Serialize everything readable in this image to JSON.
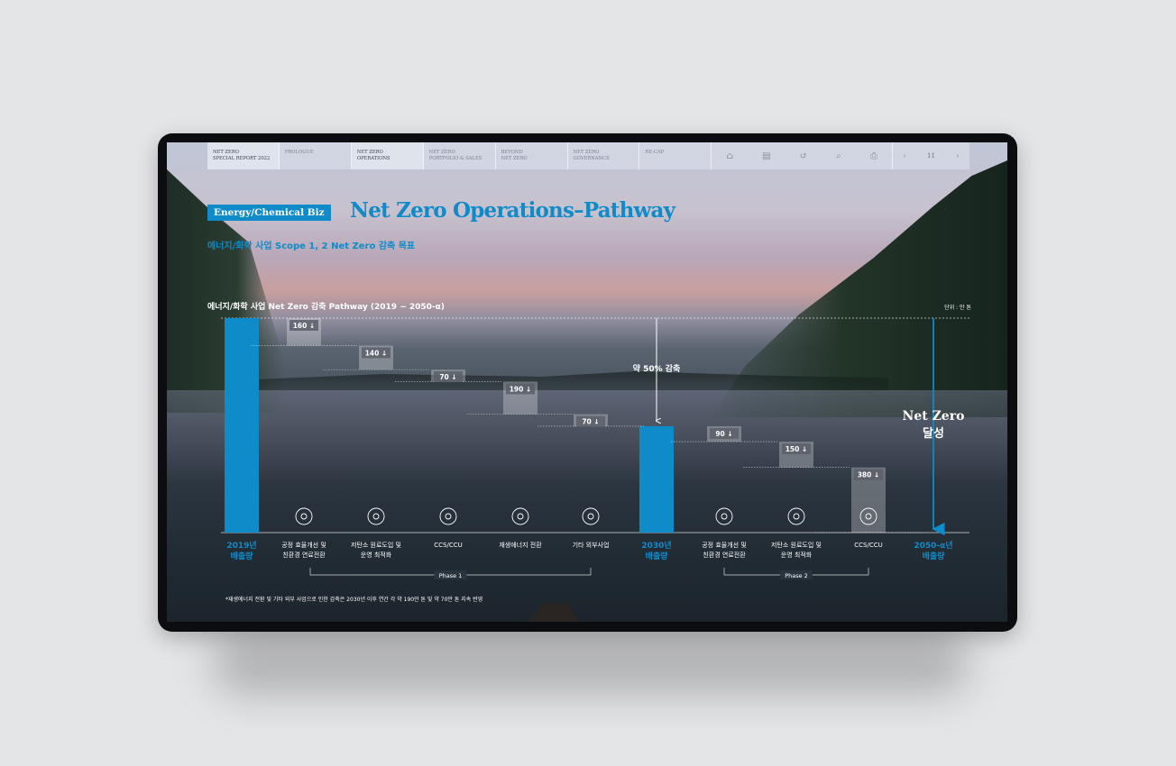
{
  "nav": {
    "items": [
      {
        "label": "NET ZERO\nSPECIAL REPORT 2022",
        "active": true
      },
      {
        "label": "PROLOGUE",
        "active": false
      },
      {
        "label": "NET ZERO\nOPERATIONS",
        "active": true
      },
      {
        "label": "NET ZERO\nPORTFOLIO & SALES",
        "active": false
      },
      {
        "label": "BEYOND\nNET ZERO",
        "active": false
      },
      {
        "label": "NET ZERO\nGOVERNANCE",
        "active": false
      },
      {
        "label": "RE-CAP",
        "active": false
      }
    ],
    "icons": [
      "home-icon",
      "page-icon",
      "back-icon",
      "search-icon",
      "print-icon"
    ],
    "page_number": "11"
  },
  "header": {
    "badge": "Energy/Chemical Biz",
    "title": "Net Zero Operations–Pathway",
    "subtitle": "에너지/화학 사업 Scope 1, 2 Net Zero 감축 목표"
  },
  "chart_title": "에너지/화학 사업 Net Zero 감축 Pathway (2019 ~ 2050-α)",
  "unit": "단위 : 만 톤",
  "chart_data": {
    "type": "bar",
    "subtype": "waterfall",
    "start": {
      "label_line1": "2019년",
      "label_line2": "배출량"
    },
    "mid": {
      "label_line1": "2030년",
      "label_line2": "배출량"
    },
    "end": {
      "label_line1": "2050-α년",
      "label_line2": "배출량"
    },
    "steps": [
      {
        "value": 160,
        "label": "160 ↓",
        "cat_line1": "공정 효율개선 및",
        "cat_line2": "친환경 연료전환",
        "icon": "process-efficiency-icon",
        "phase": 1
      },
      {
        "value": 140,
        "label": "140 ↓",
        "cat_line1": "저탄소 원료도입 및",
        "cat_line2": "운영 최적화",
        "icon": "low-carbon-material-icon",
        "phase": 1
      },
      {
        "value": 70,
        "label": "70 ↓",
        "cat_line1": "CCS/CCU",
        "cat_line2": "",
        "icon": "ccs-ccu-icon",
        "phase": 1
      },
      {
        "value": 190,
        "label": "190 ↓",
        "cat_line1": "재생에너지 전환",
        "cat_line2": "",
        "icon": "renewable-energy-icon",
        "phase": 1
      },
      {
        "value": 70,
        "label": "70 ↓",
        "cat_line1": "기타 외부사업",
        "cat_line2": "",
        "icon": "external-projects-icon",
        "phase": 1
      },
      {
        "value": 90,
        "label": "90 ↓",
        "cat_line1": "공정 효율개선 및",
        "cat_line2": "친환경 연료전환",
        "icon": "process-efficiency-icon",
        "phase": 2
      },
      {
        "value": 150,
        "label": "150 ↓",
        "cat_line1": "저탄소 원료도입 및",
        "cat_line2": "운영 최적화",
        "icon": "low-carbon-material-icon",
        "phase": 2
      },
      {
        "value": 380,
        "label": "380 ↓",
        "cat_line1": "CCS/CCU",
        "cat_line2": "",
        "icon": "ccs-ccu-icon",
        "phase": 2
      }
    ],
    "phases": [
      "Phase 1",
      "Phase 2"
    ],
    "annotation_mid": "약 50% 감축",
    "annotation_end_line1": "Net Zero",
    "annotation_end_line2": "달성",
    "colors": {
      "bar": "#0e8bc8",
      "accent_text": "#0e8bc8"
    }
  },
  "footnote": "*재생에너지 전환 및 기타 외부 사업으로 인한 감축은 2030년 이후 연간 각 약 190만 톤 및 약 70만 톤 지속 반영"
}
